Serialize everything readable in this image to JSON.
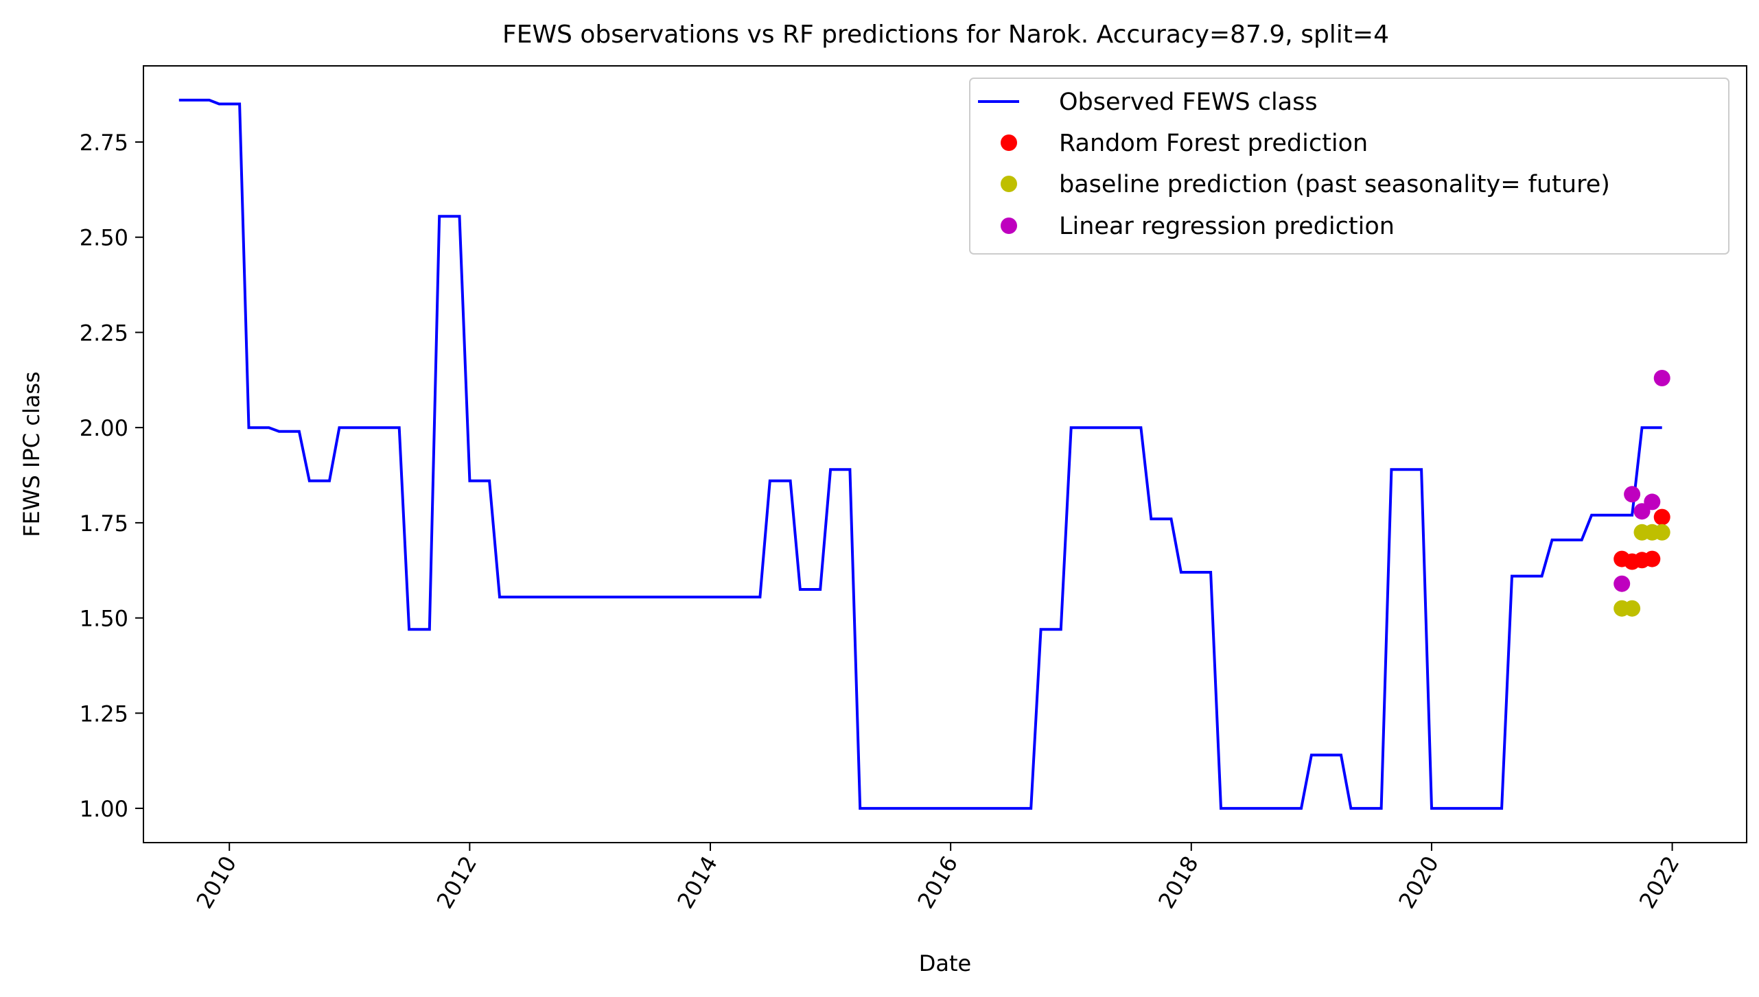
{
  "chart_data": {
    "type": "line",
    "title": "FEWS observations vs RF predictions for Narok. Accuracy=87.9, split=4",
    "xlabel": "Date",
    "ylabel": "FEWS IPC class",
    "xlim": [
      "2009-04-15",
      "2022-08-15"
    ],
    "ylim": [
      0.91,
      2.95
    ],
    "x_ticks": [
      "2010",
      "2012",
      "2014",
      "2016",
      "2018",
      "2020",
      "2022"
    ],
    "y_ticks": [
      "1.00",
      "1.25",
      "1.50",
      "1.75",
      "2.00",
      "2.25",
      "2.50",
      "2.75"
    ],
    "grid": false,
    "legend_position": "top-right",
    "legend": [
      "Observed FEWS class",
      "Random Forest prediction",
      "baseline prediction (past seasonality= future)",
      "Linear regression prediction"
    ],
    "series": [
      {
        "name": "Observed FEWS class",
        "kind": "line",
        "color": "#0000ff",
        "points": [
          [
            "2009-08-01",
            2.86
          ],
          [
            "2009-11-01",
            2.86
          ],
          [
            "2009-12-01",
            2.85
          ],
          [
            "2010-02-01",
            2.85
          ],
          [
            "2010-03-01",
            2.0
          ],
          [
            "2010-05-01",
            2.0
          ],
          [
            "2010-06-01",
            1.99
          ],
          [
            "2010-08-01",
            1.99
          ],
          [
            "2010-09-01",
            1.86
          ],
          [
            "2010-11-01",
            1.86
          ],
          [
            "2010-12-01",
            2.0
          ],
          [
            "2011-06-01",
            2.0
          ],
          [
            "2011-07-01",
            1.47
          ],
          [
            "2011-09-01",
            1.47
          ],
          [
            "2011-10-01",
            2.555
          ],
          [
            "2011-12-01",
            2.555
          ],
          [
            "2012-01-01",
            1.86
          ],
          [
            "2012-03-01",
            1.86
          ],
          [
            "2012-04-01",
            1.555
          ],
          [
            "2014-06-01",
            1.555
          ],
          [
            "2014-07-01",
            1.86
          ],
          [
            "2014-09-01",
            1.86
          ],
          [
            "2014-10-01",
            1.575
          ],
          [
            "2014-12-01",
            1.575
          ],
          [
            "2015-01-01",
            1.89
          ],
          [
            "2015-03-01",
            1.89
          ],
          [
            "2015-04-01",
            1.0
          ],
          [
            "2016-09-01",
            1.0
          ],
          [
            "2016-10-01",
            1.47
          ],
          [
            "2016-12-01",
            1.47
          ],
          [
            "2017-01-01",
            2.0
          ],
          [
            "2017-08-01",
            2.0
          ],
          [
            "2017-09-01",
            1.76
          ],
          [
            "2017-11-01",
            1.76
          ],
          [
            "2017-12-01",
            1.62
          ],
          [
            "2018-03-01",
            1.62
          ],
          [
            "2018-04-01",
            1.0
          ],
          [
            "2018-12-01",
            1.0
          ],
          [
            "2019-01-01",
            1.14
          ],
          [
            "2019-04-01",
            1.14
          ],
          [
            "2019-05-01",
            1.0
          ],
          [
            "2019-08-01",
            1.0
          ],
          [
            "2019-09-01",
            1.89
          ],
          [
            "2019-12-01",
            1.89
          ],
          [
            "2020-01-01",
            1.0
          ],
          [
            "2020-08-01",
            1.0
          ],
          [
            "2020-09-01",
            1.61
          ],
          [
            "2020-12-01",
            1.61
          ],
          [
            "2021-01-01",
            1.705
          ],
          [
            "2021-04-01",
            1.705
          ],
          [
            "2021-05-01",
            1.77
          ],
          [
            "2021-08-01",
            1.77
          ],
          [
            "2021-09-01",
            1.77
          ],
          [
            "2021-10-01",
            2.0
          ],
          [
            "2021-12-01",
            2.0
          ]
        ]
      },
      {
        "name": "Random Forest prediction",
        "kind": "scatter",
        "color": "#ff0000",
        "points": [
          [
            "2021-08-01",
            1.655
          ],
          [
            "2021-09-01",
            1.648
          ],
          [
            "2021-10-01",
            1.652
          ],
          [
            "2021-11-01",
            1.655
          ],
          [
            "2021-12-01",
            1.765
          ]
        ]
      },
      {
        "name": "baseline prediction (past seasonality= future)",
        "kind": "scatter",
        "color": "#bfbf00",
        "points": [
          [
            "2021-08-01",
            1.525
          ],
          [
            "2021-09-01",
            1.525
          ],
          [
            "2021-10-01",
            1.725
          ],
          [
            "2021-11-01",
            1.725
          ],
          [
            "2021-12-01",
            1.725
          ]
        ]
      },
      {
        "name": "Linear regression prediction",
        "kind": "scatter",
        "color": "#bf00bf",
        "points": [
          [
            "2021-08-01",
            1.59
          ],
          [
            "2021-09-01",
            1.825
          ],
          [
            "2021-10-01",
            1.78
          ],
          [
            "2021-11-01",
            1.805
          ],
          [
            "2021-12-01",
            2.13
          ]
        ]
      }
    ]
  }
}
